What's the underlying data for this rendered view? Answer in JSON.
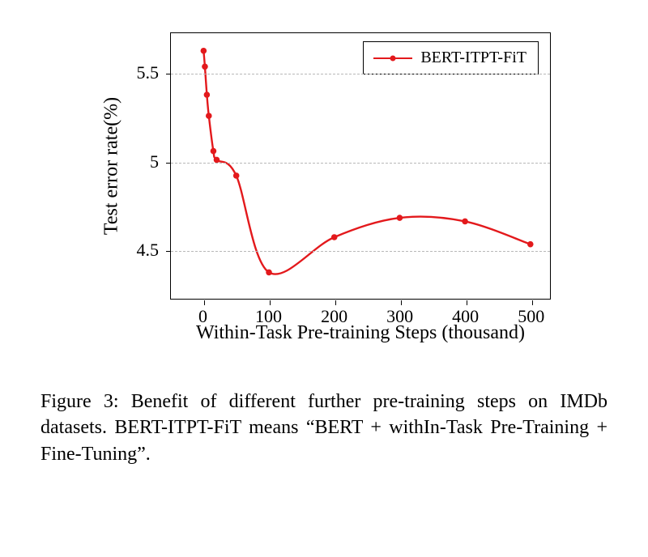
{
  "chart": {
    "type": "line",
    "series_label": "BERT-ITPT-FiT",
    "line_color": "#e3191c",
    "marker_color": "#e3191c",
    "line_width": 2.4,
    "marker_radius": 3.8,
    "background_color": "#ffffff",
    "grid_color": "#b8b8b8",
    "x_label": "Within-Task Pre-training Steps (thousand)",
    "y_label": "Test error rate(%)",
    "xlim": [
      -50,
      530
    ],
    "ylim": [
      4.22,
      5.73
    ],
    "x_ticks": [
      0,
      100,
      200,
      300,
      400,
      500
    ],
    "y_ticks": [
      4.5,
      5,
      5.5
    ],
    "label_fontsize": 24,
    "tick_fontsize": 22,
    "legend_fontsize": 20,
    "data": {
      "x": [
        0,
        2,
        5,
        8,
        15,
        20,
        50,
        100,
        200,
        300,
        400,
        500
      ],
      "y": [
        5.63,
        5.54,
        5.38,
        5.26,
        5.06,
        5.01,
        4.92,
        4.37,
        4.57,
        4.68,
        4.66,
        4.53
      ]
    }
  },
  "caption": {
    "prefix": "Figure 3: ",
    "text": "Benefit of different further pre-training steps on IMDb datasets.  BERT-ITPT-FiT means “BERT + withIn-Task Pre-Training + Fine-Tuning”."
  }
}
